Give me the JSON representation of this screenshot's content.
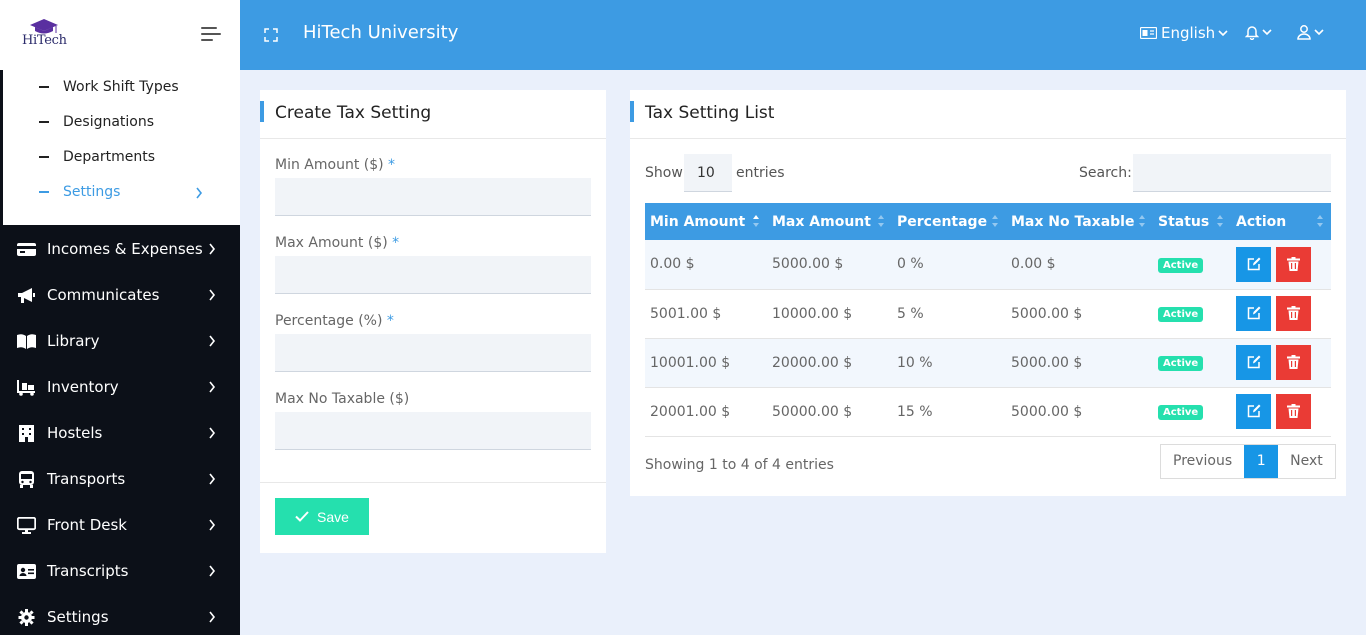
{
  "header": {
    "logo_text": "HiTech",
    "app_title": "HiTech University",
    "language": "English"
  },
  "sidebar": {
    "sub_items": [
      {
        "label": "Work Shift Types"
      },
      {
        "label": "Designations"
      },
      {
        "label": "Departments"
      },
      {
        "label": "Settings",
        "active": true
      }
    ],
    "items": [
      {
        "label": "Incomes & Expenses",
        "icon": "wallet-icon"
      },
      {
        "label": "Communicates",
        "icon": "megaphone-icon"
      },
      {
        "label": "Library",
        "icon": "book-icon"
      },
      {
        "label": "Inventory",
        "icon": "dolly-icon"
      },
      {
        "label": "Hostels",
        "icon": "building-icon"
      },
      {
        "label": "Transports",
        "icon": "bus-icon"
      },
      {
        "label": "Front Desk",
        "icon": "desktop-icon"
      },
      {
        "label": "Transcripts",
        "icon": "id-card-icon"
      },
      {
        "label": "Settings",
        "icon": "gear-icon"
      }
    ]
  },
  "form": {
    "title": "Create Tax Setting",
    "fields": [
      {
        "label": "Min Amount ($)",
        "required": "*",
        "value": ""
      },
      {
        "label": "Max Amount ($)",
        "required": "*",
        "value": ""
      },
      {
        "label": "Percentage (%)",
        "required": "*",
        "value": ""
      },
      {
        "label": "Max No Taxable ($)",
        "required": "",
        "value": ""
      }
    ],
    "save_label": "Save"
  },
  "list": {
    "title": "Tax Setting List",
    "show_label": "Show",
    "entries_value": "10",
    "entries_label": "entries",
    "search_label": "Search:",
    "columns": [
      "Min Amount",
      "Max Amount",
      "Percentage",
      "Max No Taxable",
      "Status",
      "Action"
    ],
    "rows": [
      [
        "0.00 $",
        "5000.00 $",
        "0 %",
        "0.00 $",
        "Active"
      ],
      [
        "5001.00 $",
        "10000.00 $",
        "5 %",
        "5000.00 $",
        "Active"
      ],
      [
        "10001.00 $",
        "20000.00 $",
        "10 %",
        "5000.00 $",
        "Active"
      ],
      [
        "20001.00 $",
        "50000.00 $",
        "15 %",
        "5000.00 $",
        "Active"
      ]
    ],
    "info": "Showing 1 to 4 of 4 entries",
    "pager": {
      "previous": "Previous",
      "page": "1",
      "next": "Next"
    }
  },
  "colors": {
    "primary": "#3d9be3",
    "sidebar_bg": "#0c1018",
    "success": "#25e0ae",
    "danger": "#ea3b35",
    "edit": "#1796e6"
  }
}
